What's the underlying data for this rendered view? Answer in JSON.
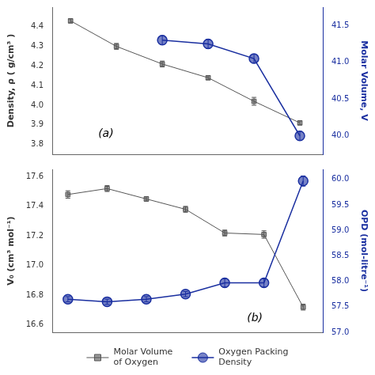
{
  "chart_data": [
    {
      "type": "line",
      "xlim": [
        -0.4,
        5.5
      ],
      "xticks": [],
      "ylim": [
        3.75,
        4.5
      ],
      "yticks": [
        3.8,
        3.9,
        {
          "value": 4.0,
          "label": "4.0"
        },
        4.1,
        4.2,
        4.3,
        4.4
      ],
      "y2lim": [
        39.75,
        41.75
      ],
      "y2ticks": [
        {
          "value": 40.0,
          "label": "40.0"
        },
        40.5,
        {
          "value": 41.0,
          "label": "41.0"
        },
        41.5
      ],
      "ylabel": "Density, ρ ( g/cm³ )",
      "y2label": "Molar Volume, V",
      "annotations": [
        {
          "text": "(a)"
        }
      ],
      "grid": false,
      "tick_labels": "y",
      "series": [
        {
          "x": [
            0,
            1,
            2,
            3,
            4,
            5
          ],
          "values": [
            4.43,
            4.3,
            4.21,
            4.14,
            4.02,
            3.91
          ],
          "errors": [
            0.01,
            0.015,
            0.015,
            0.01,
            0.02,
            0.01
          ],
          "color": "#555555",
          "marker": "square",
          "line_style": "solid"
        },
        {
          "x": [
            2,
            3,
            4,
            5
          ],
          "values": [
            41.3,
            41.25,
            41.05,
            40.0
          ],
          "errors": [
            0.06,
            0.06,
            0.06,
            0.06
          ],
          "color": "#1a2fa0",
          "marker": "circle",
          "line_style": "solid",
          "axis": "y2"
        }
      ]
    },
    {
      "type": "line",
      "xlim": [
        -0.4,
        6.5
      ],
      "xticks": [],
      "ylim": [
        16.55,
        17.65
      ],
      "yticks": [
        16.6,
        16.8,
        {
          "value": 17.0,
          "label": "17.0"
        },
        17.2,
        17.4,
        17.6
      ],
      "y2lim": [
        57.0,
        60.2
      ],
      "y2ticks": [
        {
          "value": 57.0,
          "label": "57.0"
        },
        57.5,
        {
          "value": 58.0,
          "label": "58.0"
        },
        58.5,
        {
          "value": 59.0,
          "label": "59.0"
        },
        59.5,
        {
          "value": 60.0,
          "label": "60.0"
        }
      ],
      "ylabel": "V₀ (cm³ mol⁻¹)",
      "y2label": "OPD (mol-litre⁻¹)",
      "annotations": [
        {
          "text": "(b)"
        }
      ],
      "grid": false,
      "tick_labels": "y",
      "legend": "bottom",
      "series": [
        {
          "name": "Molar Volume\nof Oxygen",
          "x": [
            0,
            1,
            2,
            3,
            4,
            5,
            6
          ],
          "values": [
            17.48,
            17.52,
            17.45,
            17.38,
            17.22,
            17.21,
            16.72
          ],
          "errors": [
            0.025,
            0.02,
            0.015,
            0.02,
            0.02,
            0.025,
            0.02
          ],
          "color": "#555555",
          "marker": "square",
          "line_style": "solid"
        },
        {
          "name": "Oxygen Packing\nDensity",
          "x": [
            0,
            1,
            2,
            3,
            4,
            5,
            6
          ],
          "values": [
            57.65,
            57.6,
            57.65,
            57.75,
            57.97,
            57.97,
            59.97
          ],
          "errors": [
            0.05,
            0.05,
            0.05,
            0.05,
            0.08,
            0.08,
            0.1
          ],
          "color": "#1a2fa0",
          "marker": "circle",
          "line_style": "solid",
          "axis": "y2"
        }
      ]
    }
  ]
}
